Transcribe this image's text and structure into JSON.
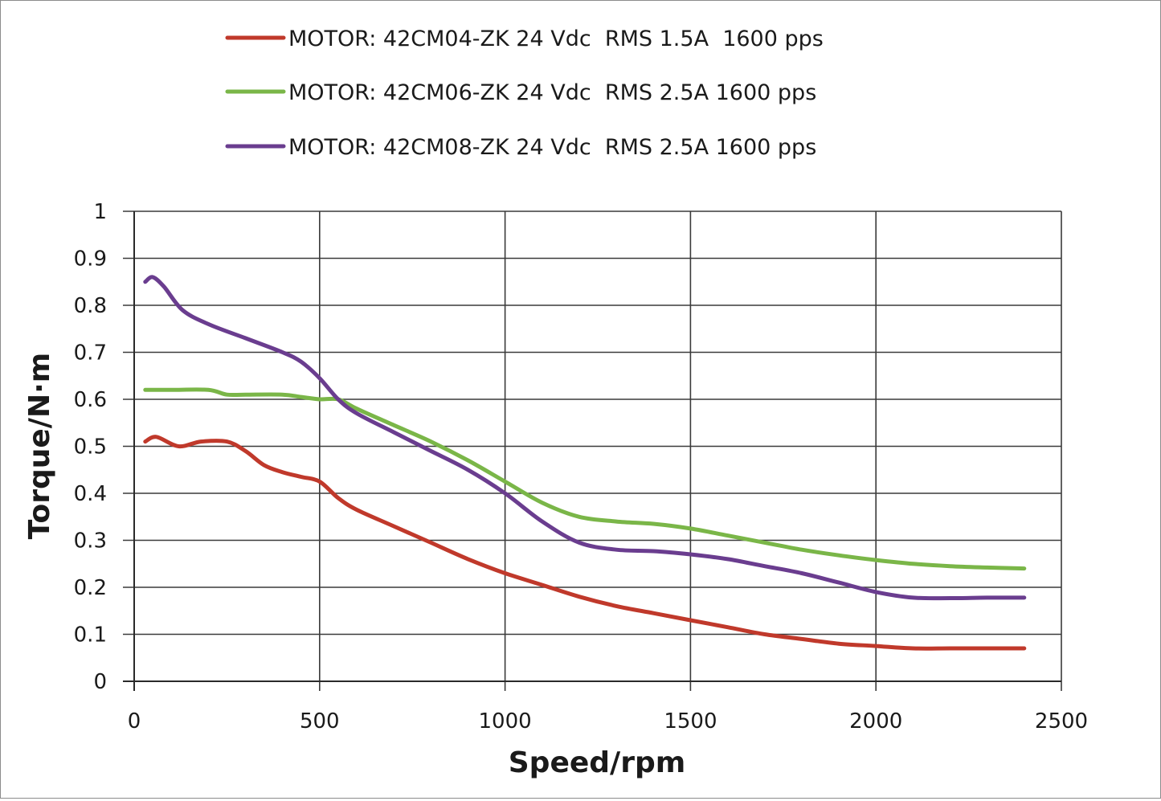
{
  "chart_data": {
    "type": "line",
    "title": "",
    "xlabel": "Speed/rpm",
    "ylabel": "Torque/N·m",
    "xlim": [
      0,
      2500
    ],
    "ylim": [
      0,
      1
    ],
    "x_ticks": [
      "0",
      "500",
      "1000",
      "1500",
      "2000",
      "2500"
    ],
    "y_ticks": [
      "0",
      "0.1",
      "0.2",
      "0.3",
      "0.4",
      "0.5",
      "0.6",
      "0.7",
      "0.8",
      "0.9",
      "1"
    ],
    "grid": true,
    "legend_position": "top",
    "series": [
      {
        "name": "MOTOR: 42CM04-ZK 24 Vdc  RMS 1.5A  1600 pps",
        "color": "#c0392b",
        "x": [
          30,
          60,
          120,
          180,
          250,
          300,
          350,
          400,
          450,
          500,
          550,
          600,
          700,
          800,
          900,
          1000,
          1100,
          1200,
          1300,
          1400,
          1500,
          1600,
          1700,
          1800,
          1900,
          2000,
          2100,
          2200,
          2300,
          2400
        ],
        "y": [
          0.51,
          0.52,
          0.5,
          0.51,
          0.51,
          0.49,
          0.46,
          0.445,
          0.435,
          0.425,
          0.39,
          0.365,
          0.33,
          0.295,
          0.26,
          0.23,
          0.205,
          0.18,
          0.16,
          0.145,
          0.13,
          0.115,
          0.1,
          0.09,
          0.08,
          0.075,
          0.07,
          0.07,
          0.07,
          0.07
        ]
      },
      {
        "name": "MOTOR: 42CM06-ZK 24 Vdc  RMS 2.5A 1600 pps",
        "color": "#7ab648",
        "x": [
          30,
          100,
          200,
          250,
          300,
          400,
          450,
          500,
          550,
          600,
          700,
          800,
          900,
          1000,
          1100,
          1200,
          1300,
          1400,
          1500,
          1600,
          1700,
          1800,
          1900,
          2000,
          2100,
          2200,
          2300,
          2400
        ],
        "y": [
          0.62,
          0.62,
          0.62,
          0.61,
          0.61,
          0.61,
          0.605,
          0.6,
          0.6,
          0.58,
          0.545,
          0.51,
          0.47,
          0.425,
          0.38,
          0.35,
          0.34,
          0.335,
          0.325,
          0.31,
          0.295,
          0.28,
          0.268,
          0.258,
          0.25,
          0.245,
          0.242,
          0.24
        ]
      },
      {
        "name": "MOTOR: 42CM08-ZK 24 Vdc  RMS 2.5A 1600 pps",
        "color": "#6a3d8f",
        "x": [
          30,
          50,
          80,
          130,
          200,
          300,
          400,
          450,
          500,
          550,
          600,
          700,
          800,
          900,
          1000,
          1100,
          1200,
          1300,
          1400,
          1500,
          1600,
          1700,
          1800,
          1900,
          2000,
          2100,
          2200,
          2300,
          2400
        ],
        "y": [
          0.85,
          0.86,
          0.84,
          0.79,
          0.76,
          0.73,
          0.7,
          0.68,
          0.645,
          0.6,
          0.57,
          0.53,
          0.49,
          0.45,
          0.4,
          0.34,
          0.295,
          0.28,
          0.277,
          0.27,
          0.26,
          0.245,
          0.23,
          0.21,
          0.19,
          0.178,
          0.177,
          0.178,
          0.178
        ]
      }
    ]
  }
}
